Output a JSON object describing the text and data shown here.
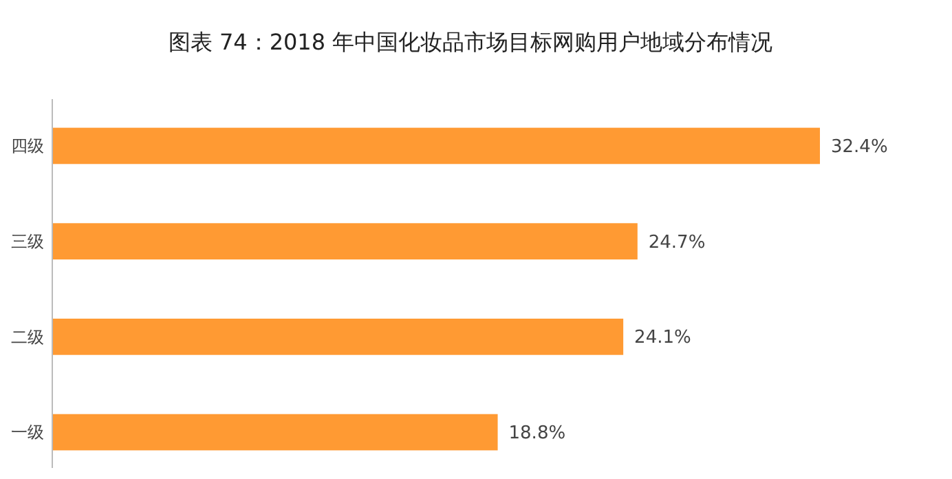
{
  "chart_data": {
    "type": "bar",
    "orientation": "horizontal",
    "title": "图表 74：2018 年中国化妆品市场目标网购用户地域分布情况",
    "categories": [
      "四级",
      "三级",
      "二级",
      "一级"
    ],
    "values": [
      32.4,
      24.7,
      24.1,
      18.8
    ],
    "value_labels": [
      "32.4%",
      "24.7%",
      "24.1%",
      "18.8%"
    ],
    "color": "#ff9a33"
  }
}
